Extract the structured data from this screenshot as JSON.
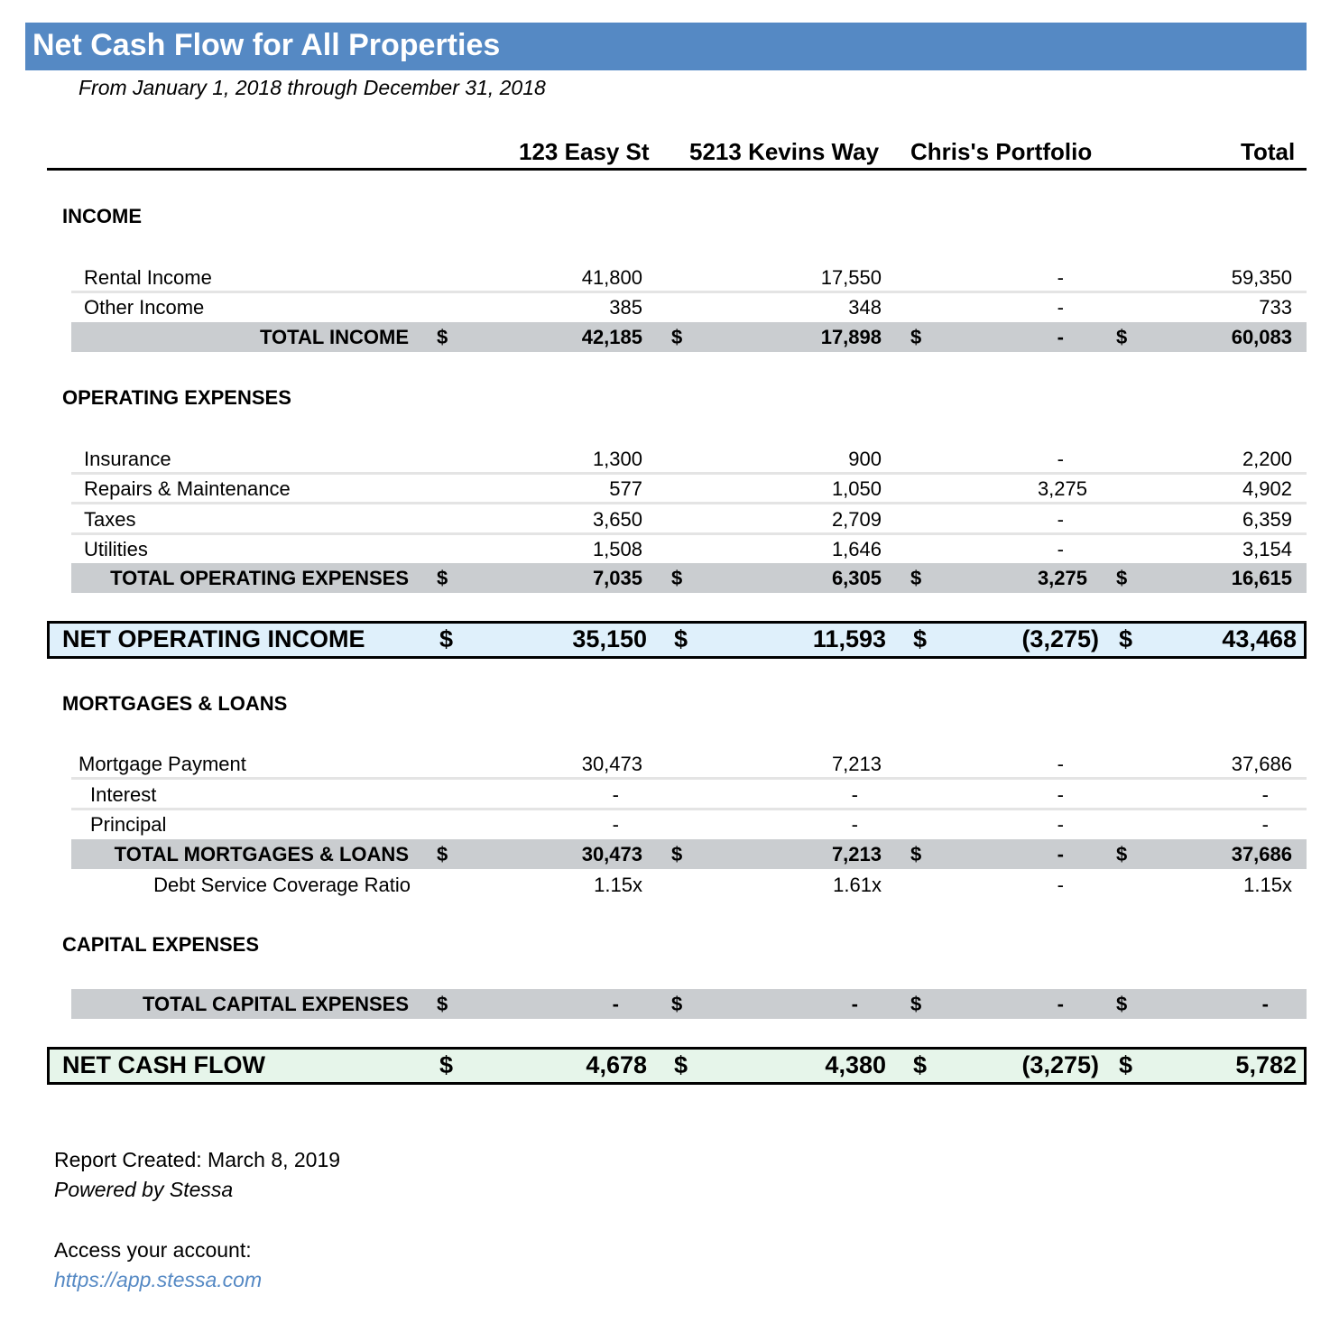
{
  "title": "Net Cash Flow for All Properties",
  "subtitle": "From January  1, 2018 through December 31, 2018",
  "columns": [
    "123 Easy St",
    "5213 Kevins Way",
    "Chris's Portfolio",
    "Total"
  ],
  "currency_symbol": "$",
  "colors": {
    "title_bar": "#5589c4",
    "total_band": "#cacdd0",
    "noi_fill": "#dff0fb",
    "ncf_fill": "#e6f5ea"
  },
  "sections": {
    "income": "INCOME",
    "opex": "OPERATING EXPENSES",
    "mortgages": "MORTGAGES & LOANS",
    "capex": "CAPITAL EXPENSES"
  },
  "rows": [
    {
      "type": "item",
      "label": "Rental Income",
      "values": [
        "41,800",
        "17,550",
        "-",
        "59,350"
      ]
    },
    {
      "type": "item",
      "label": "Other Income",
      "values": [
        "385",
        "348",
        "-",
        "733"
      ]
    },
    {
      "type": "total",
      "label": "TOTAL INCOME",
      "values": [
        "42,185",
        "17,898",
        "-",
        "60,083"
      ]
    },
    {
      "type": "item",
      "label": "Insurance",
      "values": [
        "1,300",
        "900",
        "-",
        "2,200"
      ]
    },
    {
      "type": "item",
      "label": "Repairs & Maintenance",
      "values": [
        "577",
        "1,050",
        "3,275",
        "4,902"
      ]
    },
    {
      "type": "item",
      "label": "Taxes",
      "values": [
        "3,650",
        "2,709",
        "-",
        "6,359"
      ]
    },
    {
      "type": "item",
      "label": "Utilities",
      "values": [
        "1,508",
        "1,646",
        "-",
        "3,154"
      ]
    },
    {
      "type": "total",
      "label": "TOTAL OPERATING EXPENSES",
      "values": [
        "7,035",
        "6,305",
        "3,275",
        "16,615"
      ]
    },
    {
      "type": "big",
      "label": "NET OPERATING INCOME",
      "values": [
        "35,150",
        "11,593",
        "(3,275)",
        "43,468"
      ]
    },
    {
      "type": "item",
      "label": "Mortgage Payment",
      "values": [
        "30,473",
        "7,213",
        "-",
        "37,686"
      ]
    },
    {
      "type": "item",
      "label": "Interest",
      "values": [
        "-",
        "-",
        "-",
        "-"
      ]
    },
    {
      "type": "item",
      "label": "Principal",
      "values": [
        "-",
        "-",
        "-",
        "-"
      ]
    },
    {
      "type": "total",
      "label": "TOTAL MORTGAGES & LOANS",
      "values": [
        "30,473",
        "7,213",
        "-",
        "37,686"
      ]
    },
    {
      "type": "ratio",
      "label": "Debt Service Coverage Ratio",
      "values": [
        "1.15x",
        "1.61x",
        "-",
        "1.15x"
      ]
    },
    {
      "type": "total",
      "label": "TOTAL CAPITAL EXPENSES",
      "values": [
        "-",
        "-",
        "-",
        "-"
      ]
    },
    {
      "type": "big",
      "label": "NET CASH FLOW",
      "values": [
        "4,678",
        "4,380",
        "(3,275)",
        "5,782"
      ]
    }
  ],
  "footer": {
    "created": "Report Created: March  8, 2019",
    "powered": "Powered by Stessa",
    "access": "Access your account:",
    "link": "https://app.stessa.com"
  }
}
